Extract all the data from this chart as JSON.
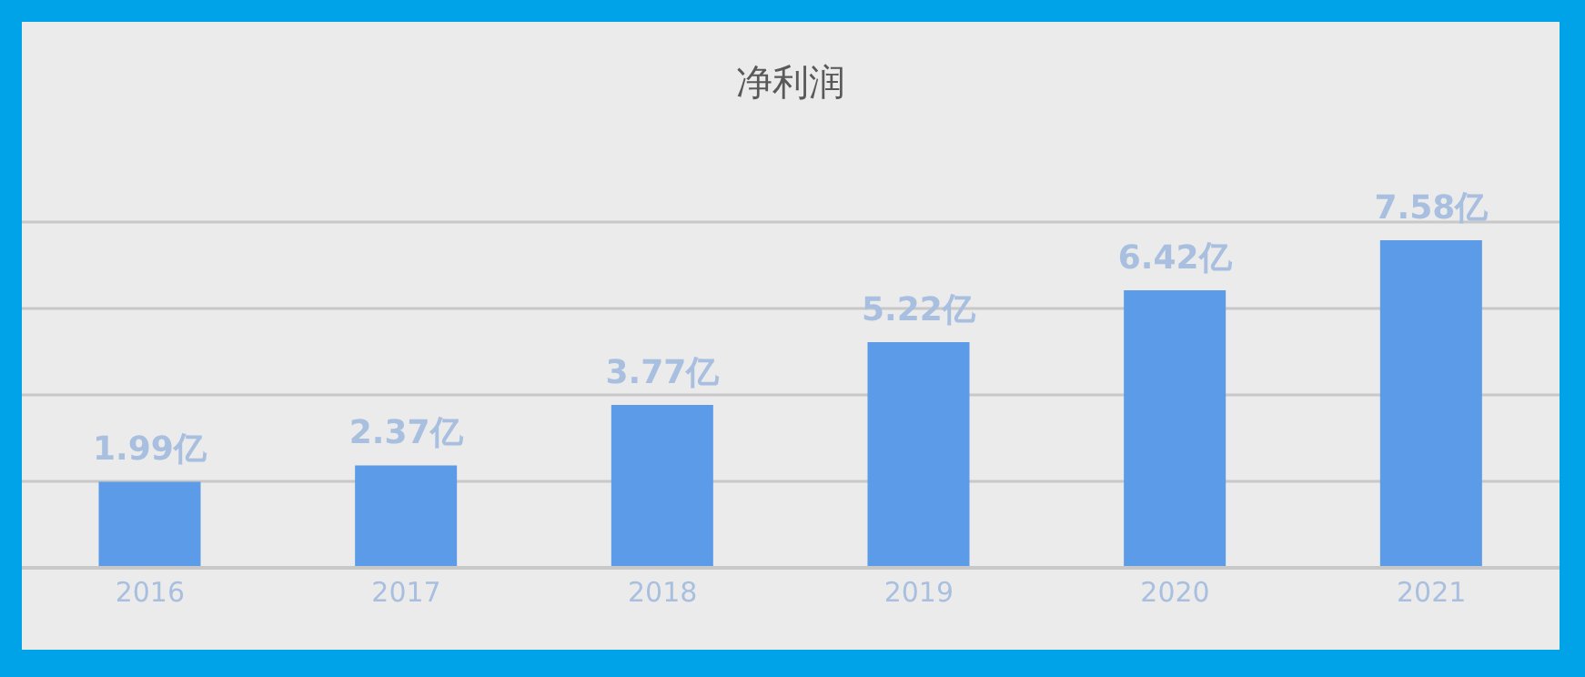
{
  "chart_data": {
    "type": "bar",
    "title": "净利润",
    "categories": [
      "2016",
      "2017",
      "2018",
      "2019",
      "2020",
      "2021"
    ],
    "values": [
      1.99,
      2.37,
      3.77,
      5.22,
      6.42,
      7.58
    ],
    "value_labels": [
      "1.99亿",
      "2.37亿",
      "3.77亿",
      "5.22亿",
      "6.42亿",
      "7.58亿"
    ],
    "color": "#5b9be8",
    "tick_labels": "x",
    "grid": "y"
  }
}
